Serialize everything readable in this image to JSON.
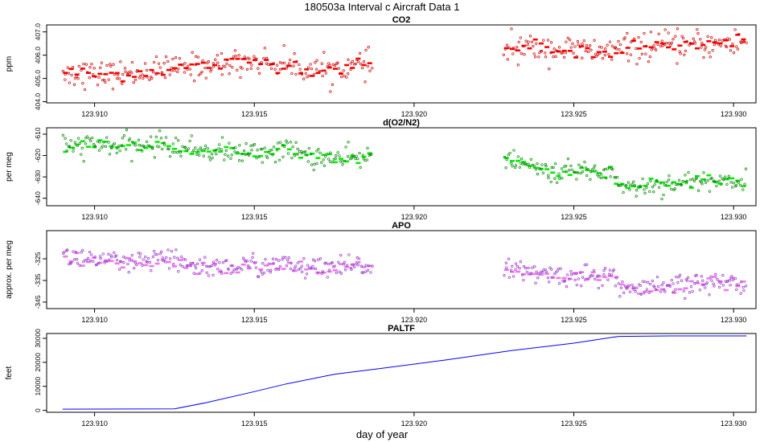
{
  "figure": {
    "title": "180503a   Interval c Aircraft Data 1",
    "xlabel": "day of year"
  },
  "chart_data": [
    {
      "id": "co2",
      "type": "scatter",
      "title": "CO2",
      "ylabel": "ppm",
      "xlabel": "",
      "xlim": [
        123.9085,
        123.9307
      ],
      "ylim": [
        403.95,
        407.3
      ],
      "xticks": [
        123.91,
        123.915,
        123.92,
        123.925,
        123.93
      ],
      "xtick_labels": [
        "123.910",
        "123.915",
        "123.920",
        "123.925",
        "123.930"
      ],
      "yticks": [
        404.0,
        405.0,
        406.0,
        407.0
      ],
      "ytick_labels": [
        "404.0",
        "405.0",
        "406.0",
        "407.0"
      ],
      "grid": false,
      "point_color": "#cc0000",
      "mean_color": "#ff0000",
      "segments": [
        {
          "x_start": 123.909,
          "x_end": 123.9187,
          "trend": [
            [
              123.909,
              405.3
            ],
            [
              123.91,
              405.15
            ],
            [
              123.911,
              405.2
            ],
            [
              123.912,
              405.35
            ],
            [
              123.913,
              405.5
            ],
            [
              123.914,
              405.6
            ],
            [
              123.915,
              405.75
            ],
            [
              123.916,
              405.6
            ],
            [
              123.917,
              405.35
            ],
            [
              123.918,
              405.5
            ],
            [
              123.9187,
              405.6
            ]
          ],
          "noise": 0.28
        },
        {
          "x_start": 123.9228,
          "x_end": 123.9304,
          "trend": [
            [
              123.9228,
              406.3
            ],
            [
              123.924,
              406.3
            ],
            [
              123.925,
              406.2
            ],
            [
              123.926,
              406.15
            ],
            [
              123.927,
              406.35
            ],
            [
              123.928,
              406.4
            ],
            [
              123.929,
              406.45
            ],
            [
              123.9304,
              406.55
            ]
          ],
          "noise": 0.3
        }
      ]
    },
    {
      "id": "do2n2",
      "type": "scatter",
      "title": "d(O2/N2)",
      "ylabel": "per meg",
      "xlabel": "",
      "xlim": [
        123.9085,
        123.9307
      ],
      "ylim": [
        -643.5,
        -607
      ],
      "xticks": [
        123.91,
        123.915,
        123.92,
        123.925,
        123.93
      ],
      "xtick_labels": [
        "123.910",
        "123.915",
        "123.920",
        "123.925",
        "123.930"
      ],
      "yticks": [
        -610,
        -620,
        -630,
        -640
      ],
      "ytick_labels": [
        "-610",
        "-620",
        "-630",
        "-640"
      ],
      "grid": false,
      "point_color": "#008800",
      "mean_color": "#00ee00",
      "segments": [
        {
          "x_start": 123.909,
          "x_end": 123.9187,
          "trend": [
            [
              123.909,
              -616
            ],
            [
              123.91,
              -615
            ],
            [
              123.911,
              -616
            ],
            [
              123.912,
              -614.5
            ],
            [
              123.913,
              -617
            ],
            [
              123.914,
              -618
            ],
            [
              123.915,
              -619
            ],
            [
              123.916,
              -617
            ],
            [
              123.917,
              -621
            ],
            [
              123.918,
              -622
            ],
            [
              123.9187,
              -620
            ]
          ],
          "noise": 2.6
        },
        {
          "x_start": 123.9228,
          "x_end": 123.9304,
          "trend": [
            [
              123.9228,
              -621
            ],
            [
              123.9235,
              -625
            ],
            [
              123.9245,
              -628
            ],
            [
              123.9255,
              -627
            ],
            [
              123.9262,
              -628
            ],
            [
              123.9265,
              -634
            ],
            [
              123.927,
              -635
            ],
            [
              123.928,
              -633
            ],
            [
              123.929,
              -632
            ],
            [
              123.9304,
              -632
            ]
          ],
          "noise": 2.4
        }
      ]
    },
    {
      "id": "apo",
      "type": "scatter",
      "title": "APO",
      "ylabel": "approx. per meg",
      "xlabel": "",
      "xlim": [
        123.9085,
        123.9307
      ],
      "ylim": [
        -348,
        -312
      ],
      "xticks": [
        123.91,
        123.915,
        123.92,
        123.925,
        123.93
      ],
      "xtick_labels": [
        "123.910",
        "123.915",
        "123.920",
        "123.925",
        "123.930"
      ],
      "yticks": [
        -325,
        -335,
        -345
      ],
      "ytick_labels": [
        "-325",
        "-335",
        "-345"
      ],
      "grid": false,
      "point_color": "#9933cc",
      "mean_color": "#ee77ee",
      "segments": [
        {
          "x_start": 123.909,
          "x_end": 123.9187,
          "trend": [
            [
              123.909,
              -324
            ],
            [
              123.91,
              -325
            ],
            [
              123.911,
              -328
            ],
            [
              123.912,
              -325
            ],
            [
              123.913,
              -328
            ],
            [
              123.914,
              -329
            ],
            [
              123.915,
              -328
            ],
            [
              123.916,
              -328
            ],
            [
              123.917,
              -330
            ],
            [
              123.918,
              -329
            ],
            [
              123.9187,
              -328
            ]
          ],
          "noise": 2.6
        },
        {
          "x_start": 123.9228,
          "x_end": 123.9304,
          "trend": [
            [
              123.9228,
              -330
            ],
            [
              123.924,
              -332
            ],
            [
              123.925,
              -333
            ],
            [
              123.9262,
              -333
            ],
            [
              123.9266,
              -339
            ],
            [
              123.9275,
              -339
            ],
            [
              123.9285,
              -337
            ],
            [
              123.9295,
              -336
            ],
            [
              123.9304,
              -336
            ]
          ],
          "noise": 2.4
        }
      ]
    },
    {
      "id": "paltf",
      "type": "line",
      "title": "PALTF",
      "ylabel": "feet",
      "xlabel": "day of year",
      "xlim": [
        123.9085,
        123.9307
      ],
      "ylim": [
        -800,
        32000
      ],
      "xticks": [
        123.91,
        123.915,
        123.92,
        123.925,
        123.93
      ],
      "xtick_labels": [
        "123.910",
        "123.915",
        "123.920",
        "123.925",
        "123.930"
      ],
      "yticks": [
        0,
        10000,
        20000,
        30000
      ],
      "ytick_labels": [
        "0",
        "10000",
        "20000",
        "30000"
      ],
      "grid": false,
      "line_color": "#0000ff",
      "x": [
        123.909,
        123.9125,
        123.9135,
        123.915,
        123.916,
        123.9175,
        123.919,
        123.921,
        123.923,
        123.925,
        123.9264,
        123.928,
        123.9304
      ],
      "y": [
        500,
        600,
        3200,
        7800,
        11000,
        15000,
        17500,
        21000,
        24800,
        28000,
        30800,
        31000,
        31000
      ]
    }
  ]
}
